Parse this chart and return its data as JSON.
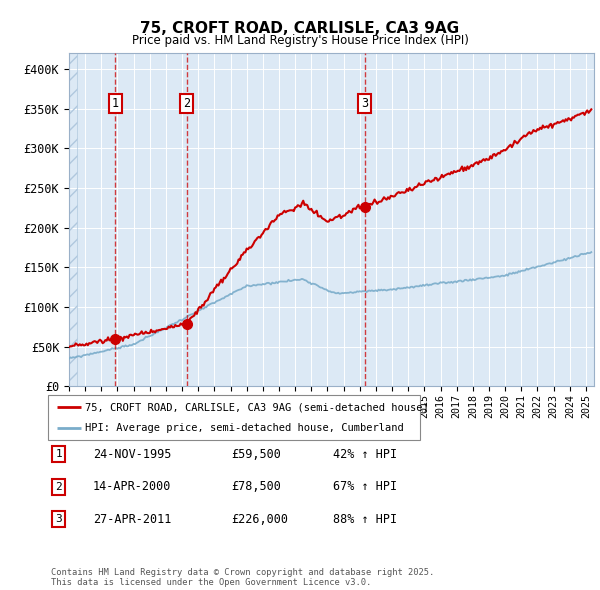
{
  "title_line1": "75, CROFT ROAD, CARLISLE, CA3 9AG",
  "title_line2": "Price paid vs. HM Land Registry's House Price Index (HPI)",
  "yticks": [
    0,
    50000,
    100000,
    150000,
    200000,
    250000,
    300000,
    350000,
    400000
  ],
  "ytick_labels": [
    "£0",
    "£50K",
    "£100K",
    "£150K",
    "£200K",
    "£250K",
    "£300K",
    "£350K",
    "£400K"
  ],
  "x_start_year": 1993,
  "x_end_year": 2025,
  "sale_dates_float": [
    1995.87,
    2000.29,
    2011.32
  ],
  "sale_prices": [
    59500,
    78500,
    226000
  ],
  "sale_labels": [
    "1",
    "2",
    "3"
  ],
  "legend_red": "75, CROFT ROAD, CARLISLE, CA3 9AG (semi-detached house)",
  "legend_blue": "HPI: Average price, semi-detached house, Cumberland",
  "table_data": [
    [
      "1",
      "24-NOV-1995",
      "£59,500",
      "42% ↑ HPI"
    ],
    [
      "2",
      "14-APR-2000",
      "£78,500",
      "67% ↑ HPI"
    ],
    [
      "3",
      "27-APR-2011",
      "£226,000",
      "88% ↑ HPI"
    ]
  ],
  "footer": "Contains HM Land Registry data © Crown copyright and database right 2025.\nThis data is licensed under the Open Government Licence v3.0.",
  "red_color": "#cc0000",
  "blue_color": "#7aacca",
  "bg_color": "#dce9f5",
  "grid_color": "#ffffff"
}
